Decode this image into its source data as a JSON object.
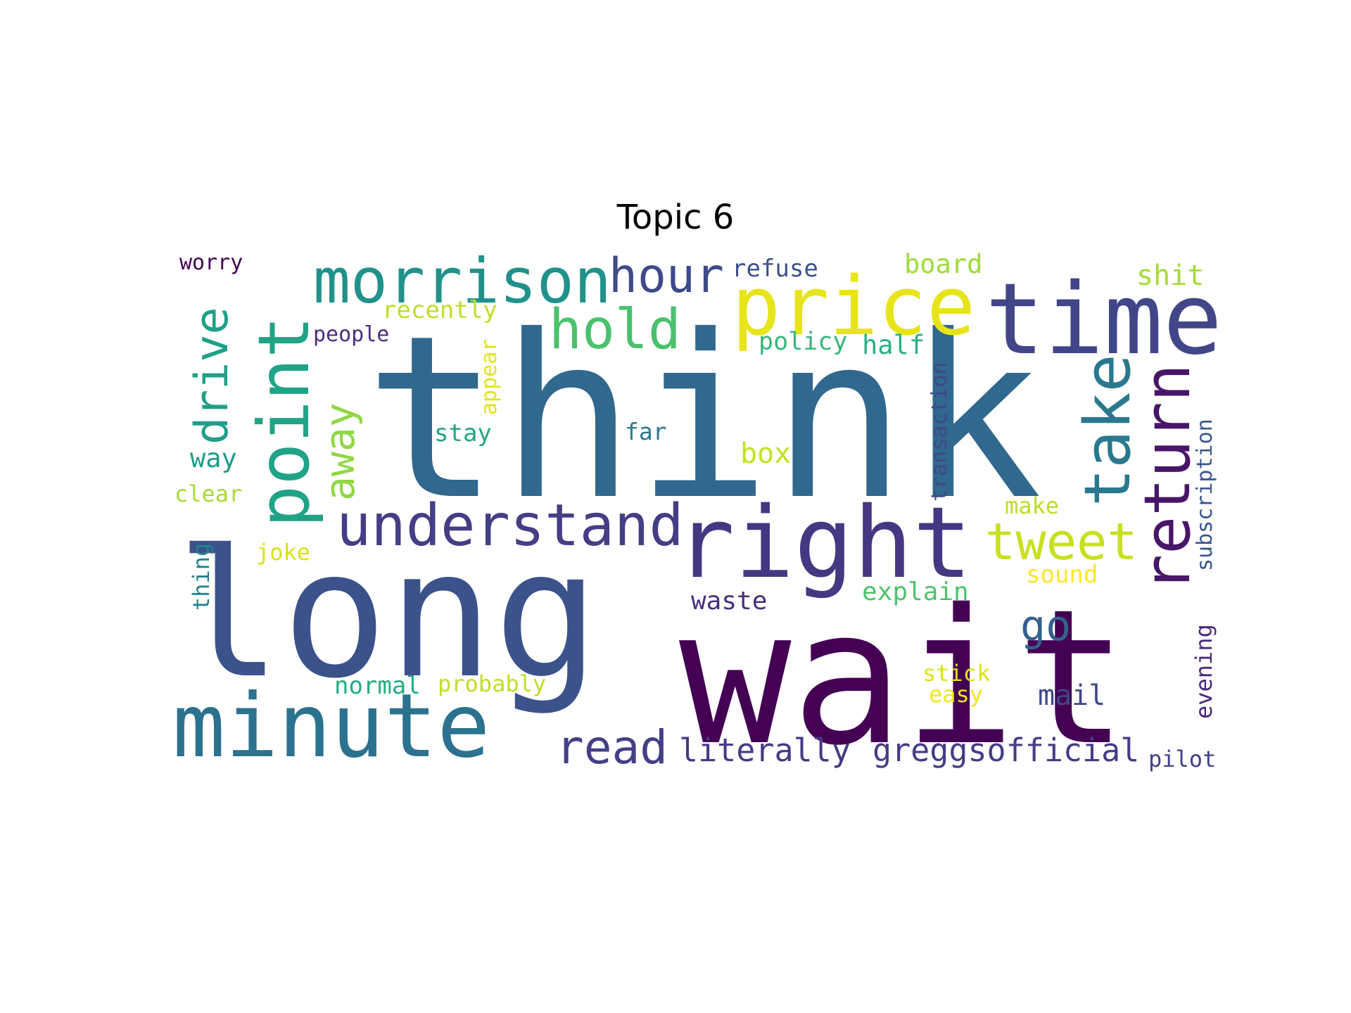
{
  "chart_data": {
    "type": "wordcloud",
    "title": "Topic 6",
    "colormap": "viridis",
    "background": "#ffffff",
    "words": [
      {
        "text": "think",
        "color": "#31688e"
      },
      {
        "text": "long",
        "color": "#3b528b"
      },
      {
        "text": "wait",
        "color": "#440154"
      },
      {
        "text": "right",
        "color": "#453781"
      },
      {
        "text": "minute",
        "color": "#2c728e"
      },
      {
        "text": "point",
        "color": "#20a386"
      },
      {
        "text": "price",
        "color": "#e7e419"
      },
      {
        "text": "time",
        "color": "#404688"
      },
      {
        "text": "morrison",
        "color": "#21918c"
      },
      {
        "text": "understand",
        "color": "#433e85"
      },
      {
        "text": "return",
        "color": "#481668"
      },
      {
        "text": "take",
        "color": "#2a788e"
      },
      {
        "text": "hold",
        "color": "#4ac16d"
      },
      {
        "text": "hour",
        "color": "#3e4a89"
      },
      {
        "text": "tweet",
        "color": "#c8e020"
      },
      {
        "text": "drive",
        "color": "#1fa088"
      },
      {
        "text": "away",
        "color": "#90d743"
      },
      {
        "text": "read",
        "color": "#424086"
      },
      {
        "text": "go",
        "color": "#34618d"
      },
      {
        "text": "literally",
        "color": "#443b84"
      },
      {
        "text": "greggsofficial",
        "color": "#433e85"
      },
      {
        "text": "refuse",
        "color": "#3b528b"
      },
      {
        "text": "board",
        "color": "#a0da39"
      },
      {
        "text": "shit",
        "color": "#a5db36"
      },
      {
        "text": "recently",
        "color": "#bddf26"
      },
      {
        "text": "people",
        "color": "#472d7b"
      },
      {
        "text": "appear",
        "color": "#e2e418"
      },
      {
        "text": "policy",
        "color": "#35b779"
      },
      {
        "text": "half",
        "color": "#2ab07f"
      },
      {
        "text": "transaction",
        "color": "#3e4989"
      },
      {
        "text": "subscription",
        "color": "#39568c"
      },
      {
        "text": "stay",
        "color": "#22a785"
      },
      {
        "text": "far",
        "color": "#2a788e"
      },
      {
        "text": "box",
        "color": "#c5e021"
      },
      {
        "text": "way",
        "color": "#1e9c89"
      },
      {
        "text": "clear",
        "color": "#a8db34"
      },
      {
        "text": "make",
        "color": "#bade28"
      },
      {
        "text": "thing",
        "color": "#26828e"
      },
      {
        "text": "joke",
        "color": "#d8e219"
      },
      {
        "text": "sound",
        "color": "#fde725"
      },
      {
        "text": "waste",
        "color": "#472f7d"
      },
      {
        "text": "explain",
        "color": "#4ec36b"
      },
      {
        "text": "evening",
        "color": "#482878"
      },
      {
        "text": "normal",
        "color": "#25ac82"
      },
      {
        "text": "probably",
        "color": "#bddf26"
      },
      {
        "text": "stick",
        "color": "#dde318"
      },
      {
        "text": "easy",
        "color": "#f1e51d"
      },
      {
        "text": "mail",
        "color": "#3f4788"
      },
      {
        "text": "pilot",
        "color": "#414287"
      },
      {
        "text": "worry",
        "color": "#440154"
      }
    ]
  }
}
